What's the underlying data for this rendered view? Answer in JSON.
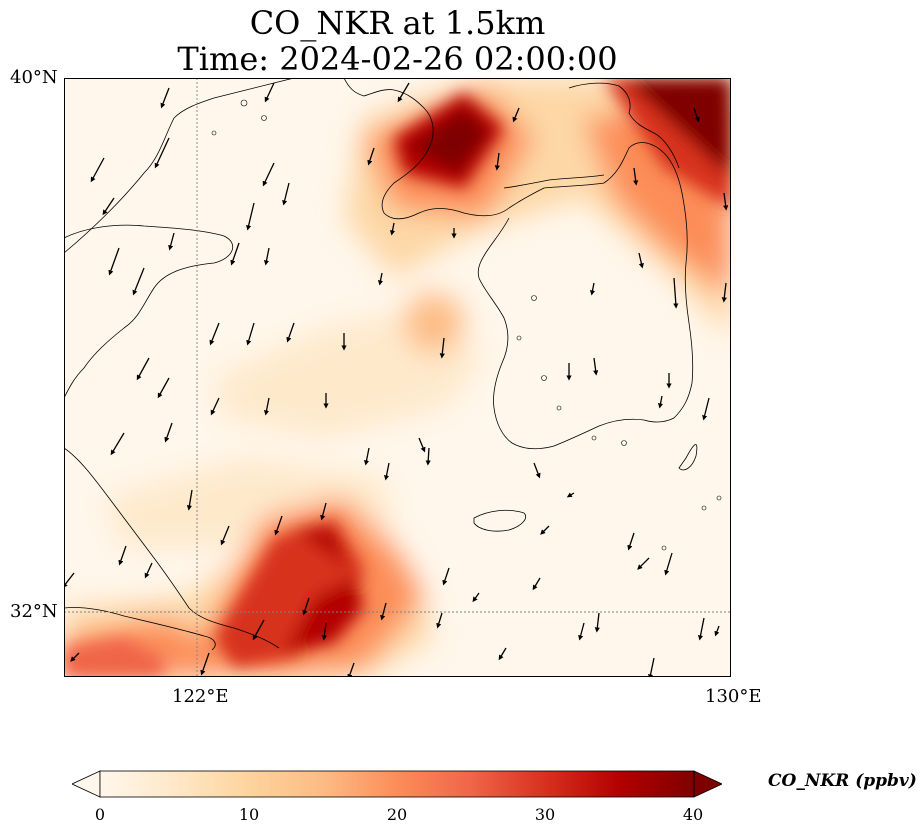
{
  "title_line1": "CO_NKR at 1.5km",
  "title_line2": "Time: 2024-02-26 02:00:00",
  "map": {
    "lon_range": [
      120,
      130
    ],
    "lat_range": [
      31,
      40
    ],
    "lat_ticks": [
      {
        "value": 40,
        "label": "40°N"
      },
      {
        "value": 32,
        "label": "32°N"
      }
    ],
    "lon_ticks": [
      {
        "value": 122,
        "label": "122°E"
      },
      {
        "value": 130,
        "label": "130°E"
      }
    ],
    "gridlines": "dotted at 122°E and 32°N",
    "wind_vectors": "black arrows, predominantly northerly (pointing south-southwest)"
  },
  "colorbar": {
    "label": "CO_NKR (ppbv)",
    "min": 0,
    "max": 40,
    "ticks": [
      "0",
      "10",
      "20",
      "30",
      "40"
    ],
    "extend": "both",
    "colormap": "OrRd",
    "colors": [
      "#fff7ec",
      "#fee8c8",
      "#fdd49e",
      "#fdbb84",
      "#fc8d59",
      "#ef6548",
      "#d7301f",
      "#b30000",
      "#7f0000"
    ]
  },
  "plumes": [
    {
      "region": "north-east corner (~128.5–130°E, 38.5–40°N)",
      "level": "40+ ppbv"
    },
    {
      "region": "Liaodong / Bohai area (~123.5–125°E, 38.5–39.8°N)",
      "level": "35–40 ppbv"
    },
    {
      "region": "south-west (~122.5–124.5°E, 31–33°N)",
      "level": "30–38 ppbv"
    },
    {
      "region": "west Yellow Sea (~125.5°E, 35.7°N)",
      "level": "15–20 ppbv"
    }
  ]
}
